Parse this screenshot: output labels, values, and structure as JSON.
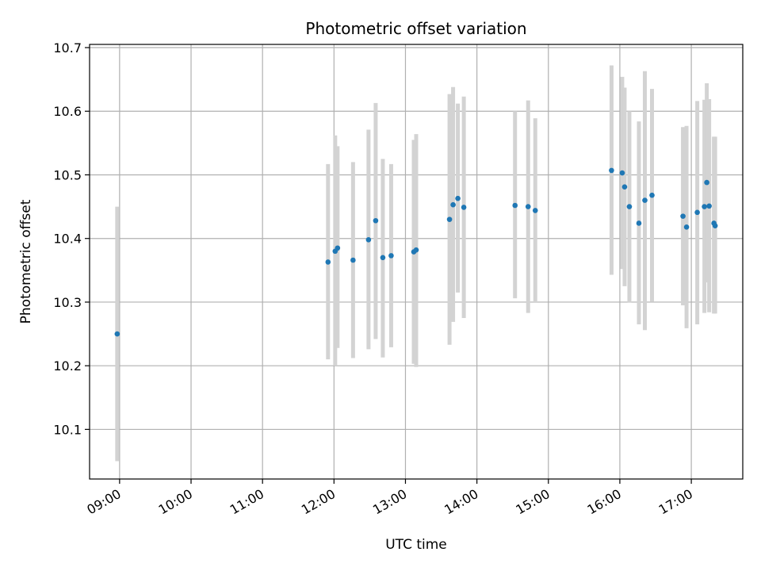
{
  "chart_data": {
    "type": "scatter",
    "title": "Photometric offset variation",
    "xlabel": "UTC time",
    "ylabel": "Photometric offset",
    "x_ticks": [
      "09:00",
      "10:00",
      "11:00",
      "12:00",
      "13:00",
      "14:00",
      "15:00",
      "16:00",
      "17:00"
    ],
    "y_ticks": [
      "10.1",
      "10.2",
      "10.3",
      "10.4",
      "10.5",
      "10.6",
      "10.7"
    ],
    "x_range_hours": [
      8.58,
      17.72
    ],
    "ylim": [
      10.022,
      10.705
    ],
    "grid": true,
    "colors": {
      "points": "#1f77b4",
      "error_bars": "#d3d3d3",
      "grid": "#b0b0b0"
    },
    "points": [
      {
        "t": "08:58",
        "y": 10.25,
        "lo": 10.05,
        "hi": 10.45
      },
      {
        "t": "11:55",
        "y": 10.363,
        "lo": 10.21,
        "hi": 10.517
      },
      {
        "t": "12:01",
        "y": 10.38,
        "lo": 10.2,
        "hi": 10.562
      },
      {
        "t": "12:03",
        "y": 10.385,
        "lo": 10.228,
        "hi": 10.545
      },
      {
        "t": "12:16",
        "y": 10.366,
        "lo": 10.212,
        "hi": 10.52
      },
      {
        "t": "12:29",
        "y": 10.398,
        "lo": 10.226,
        "hi": 10.571
      },
      {
        "t": "12:35",
        "y": 10.428,
        "lo": 10.242,
        "hi": 10.613
      },
      {
        "t": "12:41",
        "y": 10.37,
        "lo": 10.213,
        "hi": 10.525
      },
      {
        "t": "12:48",
        "y": 10.373,
        "lo": 10.229,
        "hi": 10.517
      },
      {
        "t": "13:07",
        "y": 10.379,
        "lo": 10.203,
        "hi": 10.555
      },
      {
        "t": "13:09",
        "y": 10.382,
        "lo": 10.198,
        "hi": 10.564
      },
      {
        "t": "13:37",
        "y": 10.43,
        "lo": 10.233,
        "hi": 10.627
      },
      {
        "t": "13:40",
        "y": 10.453,
        "lo": 10.269,
        "hi": 10.638
      },
      {
        "t": "13:44",
        "y": 10.463,
        "lo": 10.315,
        "hi": 10.612
      },
      {
        "t": "13:49",
        "y": 10.449,
        "lo": 10.275,
        "hi": 10.623
      },
      {
        "t": "14:32",
        "y": 10.452,
        "lo": 10.306,
        "hi": 10.6
      },
      {
        "t": "14:43",
        "y": 10.45,
        "lo": 10.283,
        "hi": 10.617
      },
      {
        "t": "14:49",
        "y": 10.444,
        "lo": 10.3,
        "hi": 10.589
      },
      {
        "t": "15:53",
        "y": 10.507,
        "lo": 10.343,
        "hi": 10.672
      },
      {
        "t": "16:02",
        "y": 10.503,
        "lo": 10.352,
        "hi": 10.654
      },
      {
        "t": "16:04",
        "y": 10.481,
        "lo": 10.325,
        "hi": 10.637
      },
      {
        "t": "16:08",
        "y": 10.45,
        "lo": 10.299,
        "hi": 10.6
      },
      {
        "t": "16:16",
        "y": 10.424,
        "lo": 10.265,
        "hi": 10.584
      },
      {
        "t": "16:21",
        "y": 10.46,
        "lo": 10.256,
        "hi": 10.663
      },
      {
        "t": "16:27",
        "y": 10.468,
        "lo": 10.301,
        "hi": 10.635
      },
      {
        "t": "16:53",
        "y": 10.435,
        "lo": 10.295,
        "hi": 10.575
      },
      {
        "t": "16:56",
        "y": 10.418,
        "lo": 10.259,
        "hi": 10.577
      },
      {
        "t": "17:05",
        "y": 10.441,
        "lo": 10.265,
        "hi": 10.616
      },
      {
        "t": "17:11",
        "y": 10.45,
        "lo": 10.283,
        "hi": 10.618
      },
      {
        "t": "17:13",
        "y": 10.488,
        "lo": 10.331,
        "hi": 10.644
      },
      {
        "t": "17:15",
        "y": 10.451,
        "lo": 10.284,
        "hi": 10.619
      },
      {
        "t": "17:19",
        "y": 10.424,
        "lo": 10.282,
        "hi": 10.56
      },
      {
        "t": "17:20",
        "y": 10.42,
        "lo": 10.282,
        "hi": 10.56
      }
    ]
  }
}
